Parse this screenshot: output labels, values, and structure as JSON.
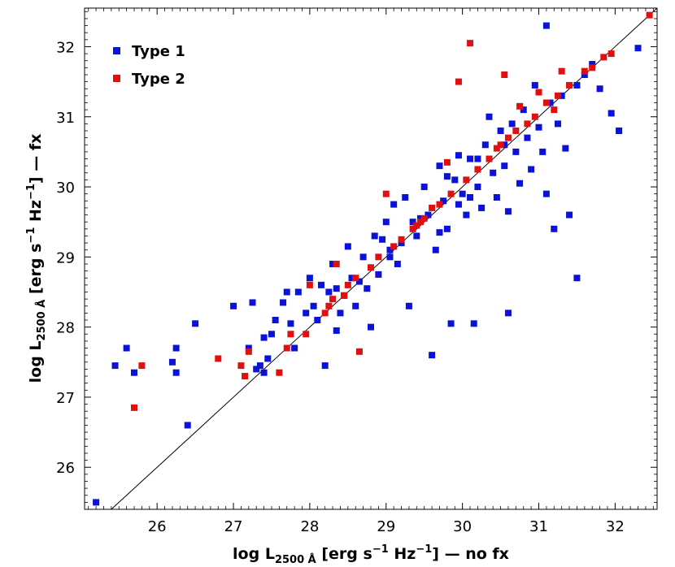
{
  "chart_data": {
    "type": "scatter",
    "xlabel": {
      "prefix": "log L",
      "subscript": "2500 Å",
      "units_open": " [erg s",
      "exp1": "−1",
      "units_mid": " Hz",
      "exp2": "−1",
      "units_close": "] — no fx"
    },
    "ylabel": {
      "prefix": "log L",
      "subscript": "2500 Å",
      "units_open": " [erg s",
      "exp1": "−1",
      "units_mid": " Hz",
      "exp2": "−1",
      "units_close": "] — fx"
    },
    "xlim": [
      25.05,
      32.55
    ],
    "ylim": [
      25.4,
      32.55
    ],
    "xticks": [
      26,
      27,
      28,
      29,
      30,
      31,
      32
    ],
    "yticks": [
      26,
      27,
      28,
      29,
      30,
      31,
      32
    ],
    "reference_line": "y = x",
    "legend_position": "top-left",
    "grid": false,
    "series": [
      {
        "name": "Type 1",
        "color": "#0a12d8",
        "points": [
          [
            25.2,
            25.5
          ],
          [
            25.45,
            27.45
          ],
          [
            25.6,
            27.7
          ],
          [
            25.7,
            27.35
          ],
          [
            26.2,
            27.5
          ],
          [
            26.25,
            27.7
          ],
          [
            26.25,
            27.35
          ],
          [
            26.4,
            26.6
          ],
          [
            26.5,
            28.05
          ],
          [
            27.0,
            28.3
          ],
          [
            27.2,
            27.7
          ],
          [
            27.25,
            28.35
          ],
          [
            27.3,
            27.4
          ],
          [
            27.35,
            27.45
          ],
          [
            27.4,
            27.85
          ],
          [
            27.4,
            27.35
          ],
          [
            27.45,
            27.55
          ],
          [
            27.55,
            28.1
          ],
          [
            27.5,
            27.9
          ],
          [
            27.65,
            28.35
          ],
          [
            27.7,
            28.5
          ],
          [
            27.75,
            28.05
          ],
          [
            27.8,
            27.7
          ],
          [
            27.85,
            28.5
          ],
          [
            27.95,
            28.2
          ],
          [
            28.0,
            28.7
          ],
          [
            28.05,
            28.3
          ],
          [
            28.1,
            28.1
          ],
          [
            28.15,
            28.6
          ],
          [
            28.2,
            27.45
          ],
          [
            28.25,
            28.5
          ],
          [
            28.3,
            28.9
          ],
          [
            28.35,
            27.95
          ],
          [
            28.4,
            28.2
          ],
          [
            28.5,
            29.15
          ],
          [
            28.55,
            28.7
          ],
          [
            28.6,
            28.3
          ],
          [
            28.7,
            29.0
          ],
          [
            28.75,
            28.55
          ],
          [
            28.8,
            28.0
          ],
          [
            28.85,
            29.3
          ],
          [
            28.9,
            28.75
          ],
          [
            29.0,
            29.5
          ],
          [
            29.05,
            29.0
          ],
          [
            29.1,
            29.75
          ],
          [
            29.15,
            28.9
          ],
          [
            29.2,
            29.2
          ],
          [
            29.25,
            29.85
          ],
          [
            29.3,
            28.3
          ],
          [
            29.35,
            29.5
          ],
          [
            29.4,
            29.3
          ],
          [
            29.5,
            30.0
          ],
          [
            29.55,
            29.6
          ],
          [
            29.6,
            27.6
          ],
          [
            29.65,
            29.1
          ],
          [
            29.7,
            30.3
          ],
          [
            29.75,
            29.8
          ],
          [
            29.8,
            29.4
          ],
          [
            29.85,
            28.05
          ],
          [
            29.9,
            30.1
          ],
          [
            29.95,
            30.45
          ],
          [
            30.0,
            29.9
          ],
          [
            30.05,
            29.6
          ],
          [
            30.1,
            30.4
          ],
          [
            30.15,
            28.05
          ],
          [
            30.2,
            30.0
          ],
          [
            30.25,
            29.7
          ],
          [
            30.3,
            30.6
          ],
          [
            30.35,
            31.0
          ],
          [
            30.4,
            30.2
          ],
          [
            30.45,
            29.85
          ],
          [
            30.5,
            30.8
          ],
          [
            30.55,
            30.3
          ],
          [
            30.6,
            28.2
          ],
          [
            30.6,
            29.65
          ],
          [
            30.65,
            30.9
          ],
          [
            30.7,
            30.5
          ],
          [
            30.75,
            30.05
          ],
          [
            30.8,
            31.1
          ],
          [
            30.85,
            30.7
          ],
          [
            30.9,
            30.25
          ],
          [
            30.95,
            31.45
          ],
          [
            31.0,
            30.85
          ],
          [
            31.05,
            30.5
          ],
          [
            31.1,
            32.3
          ],
          [
            31.1,
            29.9
          ],
          [
            31.15,
            31.2
          ],
          [
            31.2,
            29.4
          ],
          [
            31.25,
            30.9
          ],
          [
            31.3,
            31.3
          ],
          [
            31.35,
            30.55
          ],
          [
            31.4,
            29.6
          ],
          [
            31.5,
            28.7
          ],
          [
            31.5,
            31.45
          ],
          [
            31.6,
            31.6
          ],
          [
            31.7,
            31.75
          ],
          [
            31.8,
            31.4
          ],
          [
            31.95,
            31.05
          ],
          [
            32.05,
            30.8
          ],
          [
            32.3,
            31.98
          ],
          [
            29.45,
            29.55
          ],
          [
            29.05,
            29.1
          ],
          [
            28.65,
            28.65
          ],
          [
            28.45,
            28.45
          ],
          [
            29.8,
            30.15
          ],
          [
            30.2,
            30.4
          ],
          [
            30.55,
            30.6
          ],
          [
            29.95,
            29.75
          ],
          [
            28.95,
            29.25
          ],
          [
            28.35,
            28.55
          ],
          [
            29.7,
            29.35
          ],
          [
            30.1,
            29.85
          ]
        ]
      },
      {
        "name": "Type 2",
        "color": "#e01010",
        "points": [
          [
            25.7,
            26.85
          ],
          [
            25.8,
            27.45
          ],
          [
            26.8,
            27.55
          ],
          [
            27.1,
            27.45
          ],
          [
            27.15,
            27.3
          ],
          [
            27.2,
            27.65
          ],
          [
            27.6,
            27.35
          ],
          [
            27.7,
            27.7
          ],
          [
            27.75,
            27.9
          ],
          [
            27.95,
            27.9
          ],
          [
            28.0,
            28.6
          ],
          [
            28.2,
            28.2
          ],
          [
            28.3,
            28.4
          ],
          [
            28.35,
            28.9
          ],
          [
            28.45,
            28.45
          ],
          [
            28.5,
            28.6
          ],
          [
            28.6,
            28.7
          ],
          [
            28.65,
            27.65
          ],
          [
            28.8,
            28.85
          ],
          [
            28.9,
            29.0
          ],
          [
            29.0,
            29.9
          ],
          [
            29.1,
            29.15
          ],
          [
            29.2,
            29.25
          ],
          [
            29.35,
            29.4
          ],
          [
            29.45,
            29.5
          ],
          [
            29.5,
            29.55
          ],
          [
            29.6,
            29.7
          ],
          [
            29.7,
            29.75
          ],
          [
            29.8,
            30.35
          ],
          [
            29.85,
            29.9
          ],
          [
            29.95,
            31.5
          ],
          [
            30.05,
            30.1
          ],
          [
            30.1,
            32.05
          ],
          [
            30.2,
            30.25
          ],
          [
            30.35,
            30.4
          ],
          [
            30.45,
            30.55
          ],
          [
            30.5,
            30.6
          ],
          [
            30.55,
            31.6
          ],
          [
            30.6,
            30.7
          ],
          [
            30.7,
            30.8
          ],
          [
            30.75,
            31.15
          ],
          [
            30.85,
            30.9
          ],
          [
            30.95,
            31.0
          ],
          [
            31.0,
            31.35
          ],
          [
            31.1,
            31.2
          ],
          [
            31.25,
            31.3
          ],
          [
            31.3,
            31.65
          ],
          [
            31.4,
            31.45
          ],
          [
            31.6,
            31.65
          ],
          [
            31.7,
            31.7
          ],
          [
            31.85,
            31.85
          ],
          [
            31.95,
            31.9
          ],
          [
            32.45,
            32.45
          ],
          [
            31.2,
            31.1
          ],
          [
            28.25,
            28.3
          ],
          [
            29.4,
            29.45
          ]
        ]
      }
    ]
  }
}
